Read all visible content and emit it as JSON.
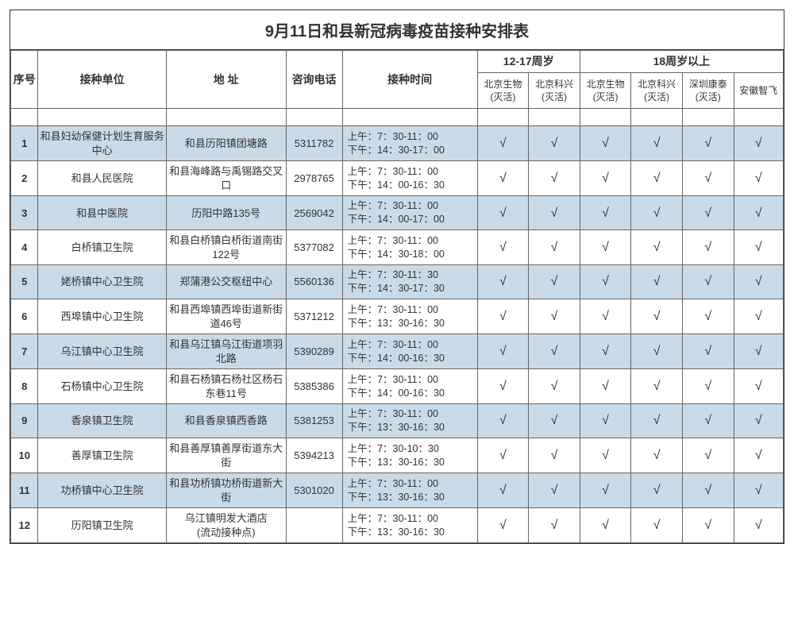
{
  "title": "9月11日和县新冠病毒疫苗接种安排表",
  "colors": {
    "band_odd": "#c9dbe8",
    "band_even": "#ffffff",
    "border": "#666666",
    "text": "#333333"
  },
  "headers": {
    "seq": "序号",
    "unit": "接种单位",
    "addr": "地 址",
    "tel": "咨询电话",
    "time": "接种时间",
    "group_12_17": "12-17周岁",
    "group_18_up": "18周岁以上"
  },
  "sub_headers": {
    "bj_shengwu": "北京生物\n(灭活)",
    "bj_kexing": "北京科兴\n(灭活)",
    "sz_kangtai": "深圳康泰\n(灭活)",
    "ah_zhifei": "安徽智飞"
  },
  "check_mark": "√",
  "rows": [
    {
      "seq": "1",
      "unit": "和县妇幼保健计划生育服务中心",
      "addr": "和县历阳镇团塘路",
      "tel": "5311782",
      "time": "上午：7：30-11：00\n下午：14：30-17：00",
      "v": [
        true,
        true,
        true,
        true,
        true,
        true
      ]
    },
    {
      "seq": "2",
      "unit": "和县人民医院",
      "addr": "和县海峰路与禹锡路交叉口",
      "tel": "2978765",
      "time": "上午：7：30-11：00\n下午：14：00-16：30",
      "v": [
        true,
        true,
        true,
        true,
        true,
        true
      ]
    },
    {
      "seq": "3",
      "unit": "和县中医院",
      "addr": "历阳中路135号",
      "tel": "2569042",
      "time": "上午：7：30-11：00\n下午：14：00-17：00",
      "v": [
        true,
        true,
        true,
        true,
        true,
        true
      ]
    },
    {
      "seq": "4",
      "unit": "白桥镇卫生院",
      "addr": "和县白桥镇白桥街道南街122号",
      "tel": "5377082",
      "time": "上午：7：30-11：00\n下午：14：30-18：00",
      "v": [
        true,
        true,
        true,
        true,
        true,
        true
      ]
    },
    {
      "seq": "5",
      "unit": "姥桥镇中心卫生院",
      "addr": "郑蒲港公交枢纽中心",
      "tel": "5560136",
      "time": "上午：7：30-11：30\n下午：14：30-17：30",
      "v": [
        true,
        true,
        true,
        true,
        true,
        true
      ]
    },
    {
      "seq": "6",
      "unit": "西埠镇中心卫生院",
      "addr": "和县西埠镇西埠街道新街道46号",
      "tel": "5371212",
      "time": "上午：7：30-11：00\n下午：13：30-16：30",
      "v": [
        true,
        true,
        true,
        true,
        true,
        true
      ]
    },
    {
      "seq": "7",
      "unit": "乌江镇中心卫生院",
      "addr": "和县乌江镇乌江街道项羽北路",
      "tel": "5390289",
      "time": "上午：7：30-11：00\n下午：14：00-16：30",
      "v": [
        true,
        true,
        true,
        true,
        true,
        true
      ]
    },
    {
      "seq": "8",
      "unit": "石杨镇中心卫生院",
      "addr": "和县石杨镇石杨社区杨石东巷11号",
      "tel": "5385386",
      "time": "上午：7：30-11：00\n下午：14：00-16：30",
      "v": [
        true,
        true,
        true,
        true,
        true,
        true
      ]
    },
    {
      "seq": "9",
      "unit": "香泉镇卫生院",
      "addr": "和县香泉镇西香路",
      "tel": "5381253",
      "time": "上午：7：30-11：00\n下午：13：30-16：30",
      "v": [
        true,
        true,
        true,
        true,
        true,
        true
      ]
    },
    {
      "seq": "10",
      "unit": "善厚镇卫生院",
      "addr": "和县善厚镇善厚街道东大街",
      "tel": "5394213",
      "time": "上午：7：30-10：30\n下午：13：30-16：30",
      "v": [
        true,
        true,
        true,
        true,
        true,
        true
      ]
    },
    {
      "seq": "11",
      "unit": "功桥镇中心卫生院",
      "addr": "和县功桥镇功桥街道新大街",
      "tel": "5301020",
      "time": "上午：7：30-11：00\n下午：13：30-16：30",
      "v": [
        true,
        true,
        true,
        true,
        true,
        true
      ]
    },
    {
      "seq": "12",
      "unit": "历阳镇卫生院",
      "addr": "乌江镇明发大酒店\n(流动接种点)",
      "tel": "",
      "time": "上午：7：30-11：00\n下午：13：30-16：30",
      "v": [
        true,
        true,
        true,
        true,
        true,
        true
      ]
    }
  ]
}
